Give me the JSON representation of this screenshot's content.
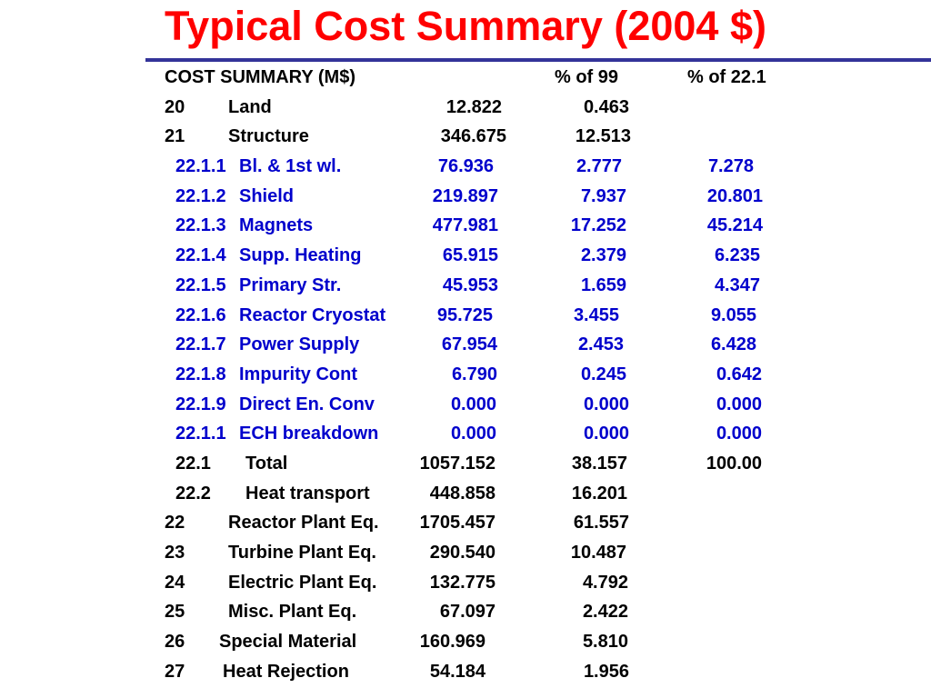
{
  "title": "Typical Cost Summary (2004 $)",
  "colors": {
    "title": "#ff0000",
    "rule": "#333399",
    "text": "#000000",
    "sub_items": "#0000cc"
  },
  "header": {
    "label": "COST SUMMARY (M$)",
    "pct99": "% of 99",
    "pct221": "% of 22.1"
  },
  "rows": [
    {
      "code": "20",
      "name": "Land",
      "value": "12.822",
      "pct99": "0.463",
      "pct221": ""
    },
    {
      "code": "21",
      "name": "Structure",
      "value": "346.675",
      "pct99": "12.513",
      "pct221": ""
    },
    {
      "code": "22.1.1",
      "name": "Bl. & 1st wl.",
      "value": "76.936",
      "pct99": "2.777",
      "pct221": "7.278"
    },
    {
      "code": "22.1.2",
      "name": "Shield",
      "value": "219.897",
      "pct99": "7.937",
      "pct221": "20.801"
    },
    {
      "code": "22.1.3",
      "name": "Magnets",
      "value": "477.981",
      "pct99": "17.252",
      "pct221": "45.214"
    },
    {
      "code": "22.1.4",
      "name": "Supp. Heating",
      "value": "65.915",
      "pct99": "2.379",
      "pct221": "6.235"
    },
    {
      "code": "22.1.5",
      "name": "Primary Str.",
      "value": "45.953",
      "pct99": "1.659",
      "pct221": "4.347"
    },
    {
      "code": "22.1.6",
      "name": "Reactor Cryostat",
      "value": "95.725",
      "pct99": "3.455",
      "pct221": "9.055"
    },
    {
      "code": "22.1.7",
      "name": "Power Supply",
      "value": "67.954",
      "pct99": "2.453",
      "pct221": "6.428"
    },
    {
      "code": "22.1.8",
      "name": "Impurity Cont",
      "value": "6.790",
      "pct99": "0.245",
      "pct221": "0.642"
    },
    {
      "code": "22.1.9",
      "name": "Direct En. Conv",
      "value": "0.000",
      "pct99": "0.000",
      "pct221": "0.000"
    },
    {
      "code": "22.1.1",
      "name": "ECH breakdown",
      "value": "0.000",
      "pct99": "0.000",
      "pct221": "0.000"
    },
    {
      "code": "22.1",
      "name": "Total",
      "value": "1057.152",
      "pct99": "38.157",
      "pct221": "100.00"
    },
    {
      "code": "22.2",
      "name": "Heat transport",
      "value": "448.858",
      "pct99": "16.201",
      "pct221": ""
    },
    {
      "code": "22",
      "name": "Reactor Plant Eq.",
      "value": "1705.457",
      "pct99": "61.557",
      "pct221": ""
    },
    {
      "code": "23",
      "name": "Turbine Plant Eq.",
      "value": "290.540",
      "pct99": "10.487",
      "pct221": ""
    },
    {
      "code": "24",
      "name": "Electric Plant Eq.",
      "value": "132.775",
      "pct99": "4.792",
      "pct221": ""
    },
    {
      "code": "25",
      "name": "Misc. Plant Eq.",
      "value": "67.097",
      "pct99": "2.422",
      "pct221": ""
    },
    {
      "code": "26",
      "name": "Special Material",
      "value": "160.969",
      "pct99": "5.810",
      "pct221": ""
    },
    {
      "code": "27",
      "name": "Heat Rejection",
      "value": "54.184",
      "pct99": "1.956",
      "pct221": ""
    }
  ]
}
